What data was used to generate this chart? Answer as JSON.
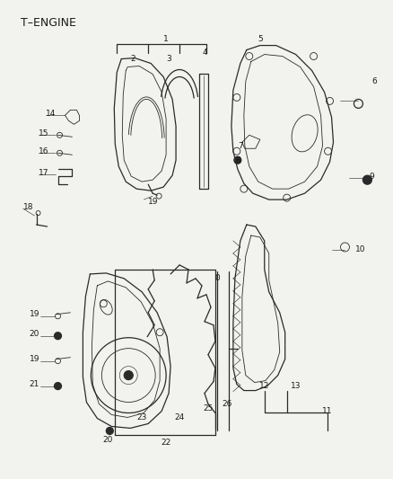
{
  "title": "T–ENGINE",
  "bg_color": "#f2f2ee",
  "line_color": "#2a2a2a",
  "text_color": "#1a1a1a",
  "figsize": [
    4.38,
    5.33
  ],
  "dpi": 100,
  "fs_label": 6.5,
  "fs_title": 9.0,
  "lw_main": 0.9,
  "lw_inner": 0.6
}
